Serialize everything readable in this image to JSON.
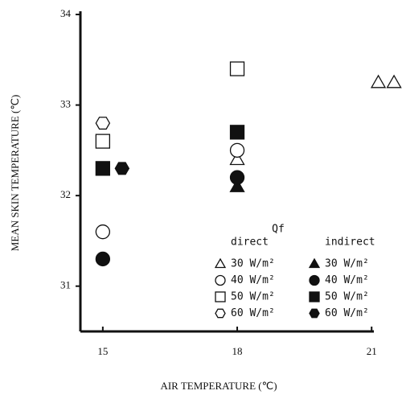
{
  "chart_data": {
    "type": "scatter",
    "xlabel": "AIR TEMPERATURE (℃)",
    "ylabel": "MEAN SKIN TEMPERATURE (℃)",
    "xlim": [
      14.5,
      21.05
    ],
    "xticks": [
      15,
      18,
      21
    ],
    "ylim": [
      30.5,
      34
    ],
    "yticks": [
      31,
      32,
      33,
      34
    ],
    "legend_title": "Qf",
    "legend_groups": [
      "direct",
      "indirect"
    ],
    "series": [
      {
        "name": "30 W/m²",
        "group": "direct",
        "marker": "triangle",
        "filled": false,
        "color": "#111",
        "x": [
          18,
          21.15,
          21.5
        ],
        "values": [
          32.4,
          33.25,
          33.25
        ]
      },
      {
        "name": "40 W/m²",
        "group": "direct",
        "marker": "circle",
        "filled": false,
        "color": "#111",
        "x": [
          15,
          18
        ],
        "values": [
          31.6,
          32.5
        ]
      },
      {
        "name": "50 W/m²",
        "group": "direct",
        "marker": "square",
        "filled": false,
        "color": "#111",
        "x": [
          15,
          18
        ],
        "values": [
          32.6,
          33.4
        ]
      },
      {
        "name": "60 W/m²",
        "group": "direct",
        "marker": "hexagon",
        "filled": false,
        "color": "#111",
        "x": [
          15
        ],
        "values": [
          32.8
        ]
      },
      {
        "name": "30 W/m²",
        "group": "indirect",
        "marker": "triangle",
        "filled": true,
        "color": "#111",
        "x": [
          18
        ],
        "values": [
          32.1
        ]
      },
      {
        "name": "40 W/m²",
        "group": "indirect",
        "marker": "circle",
        "filled": true,
        "color": "#111",
        "x": [
          15,
          18
        ],
        "values": [
          31.3,
          32.2
        ]
      },
      {
        "name": "50 W/m²",
        "group": "indirect",
        "marker": "square",
        "filled": true,
        "color": "#111",
        "x": [
          15,
          18
        ],
        "values": [
          32.3,
          32.7
        ]
      },
      {
        "name": "60 W/m²",
        "group": "indirect",
        "marker": "hexagon",
        "filled": true,
        "color": "#111",
        "x": [
          15.43
        ],
        "values": [
          32.3
        ]
      }
    ]
  }
}
